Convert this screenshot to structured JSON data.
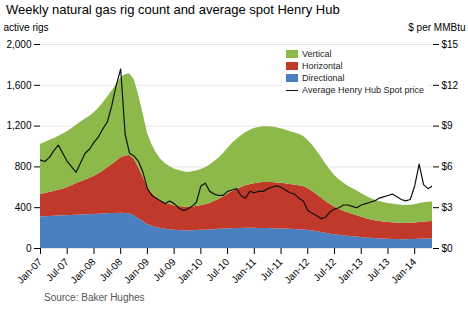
{
  "chart_data": {
    "type": "area",
    "title": "Weekly natural gas rig count and average spot Henry Hub",
    "source": "Source: Baker Hughes",
    "ylabel": "active rigs",
    "y2label": "$ per MMBtu",
    "stacked": true,
    "grid": true,
    "legend": "upper right",
    "categories": [
      "Jan-07",
      null,
      null,
      null,
      null,
      null,
      "Jul-07",
      null,
      null,
      null,
      null,
      null,
      "Jan-08",
      null,
      null,
      null,
      null,
      null,
      "Jul-08",
      null,
      null,
      null,
      null,
      null,
      "Jan-09",
      null,
      null,
      null,
      null,
      null,
      "Jul-09",
      null,
      null,
      null,
      null,
      null,
      "Jan-10",
      null,
      null,
      null,
      null,
      null,
      "Jul-10",
      null,
      null,
      null,
      null,
      null,
      "Jan-11",
      null,
      null,
      null,
      null,
      null,
      "Jul-11",
      null,
      null,
      null,
      null,
      null,
      "Jan-12",
      null,
      null,
      null,
      null,
      null,
      "Jul-12",
      null,
      null,
      null,
      null,
      null,
      "Jan-13",
      null,
      null,
      null,
      null,
      null,
      "Jul-13",
      null,
      null,
      null,
      null,
      null,
      "Jan-14",
      null,
      null,
      null,
      null
    ],
    "ylim": [
      0,
      2000
    ],
    "yticks": [
      0,
      400,
      800,
      {
        "value": 1200,
        "label": "1,200"
      },
      {
        "value": 1600,
        "label": "1,600"
      },
      {
        "value": 2000,
        "label": "2,000"
      }
    ],
    "y2lim": [
      0,
      15
    ],
    "y2ticks": [
      {
        "value": 0,
        "label": "$0"
      },
      {
        "value": 3,
        "label": "$3"
      },
      {
        "value": 6,
        "label": "$6"
      },
      {
        "value": 9,
        "label": "$9"
      },
      {
        "value": 12,
        "label": "$12"
      },
      {
        "value": 15,
        "label": "$15"
      }
    ],
    "series": [
      {
        "name": "Directional",
        "color": "#4a7fc0",
        "values": [
          310,
          312,
          314,
          315,
          318,
          320,
          322,
          324,
          326,
          328,
          330,
          332,
          334,
          336,
          338,
          340,
          342,
          344,
          346,
          344,
          340,
          320,
          295,
          265,
          235,
          220,
          205,
          195,
          188,
          183,
          178,
          176,
          174,
          172,
          174,
          176,
          178,
          180,
          182,
          185,
          188,
          190,
          192,
          194,
          195,
          196,
          198,
          198,
          198,
          197,
          196,
          195,
          194,
          193,
          192,
          190,
          188,
          186,
          184,
          182,
          178,
          172,
          166,
          158,
          150,
          143,
          136,
          130,
          125,
          120,
          116,
          112,
          108,
          104,
          100,
          97,
          94,
          92,
          90,
          89,
          88,
          87,
          87,
          88,
          89,
          90,
          92,
          93,
          94
        ]
      },
      {
        "name": "Horizontal",
        "color": "#c0392b",
        "values": [
          220,
          228,
          236,
          244,
          252,
          262,
          274,
          290,
          308,
          325,
          340,
          355,
          372,
          395,
          420,
          448,
          478,
          510,
          542,
          562,
          572,
          558,
          505,
          438,
          368,
          325,
          295,
          272,
          258,
          248,
          240,
          236,
          232,
          230,
          232,
          235,
          240,
          248,
          260,
          275,
          292,
          312,
          338,
          362,
          382,
          400,
          416,
          428,
          438,
          444,
          450,
          452,
          452,
          450,
          447,
          444,
          440,
          436,
          432,
          426,
          410,
          390,
          366,
          340,
          314,
          290,
          270,
          254,
          240,
          230,
          220,
          210,
          200,
          190,
          182,
          176,
          172,
          168,
          165,
          163,
          161,
          159,
          158,
          159,
          161,
          164,
          168,
          170,
          171
        ]
      },
      {
        "name": "Vertical",
        "color": "#8db84a",
        "values": [
          490,
          500,
          510,
          518,
          528,
          538,
          548,
          560,
          572,
          584,
          596,
          608,
          622,
          642,
          666,
          692,
          720,
          750,
          780,
          798,
          802,
          782,
          712,
          625,
          528,
          475,
          438,
          408,
          388,
          374,
          362,
          355,
          348,
          343,
          346,
          350,
          356,
          364,
          375,
          390,
          406,
          425,
          448,
          470,
          490,
          508,
          522,
          532,
          540,
          545,
          548,
          547,
          544,
          540,
          535,
          528,
          520,
          512,
          504,
          493,
          474,
          452,
          426,
          398,
          368,
          340,
          313,
          293,
          276,
          262,
          252,
          244,
          232,
          220,
          210,
          202,
          196,
          191,
          187,
          184,
          181,
          178,
          177,
          178,
          180,
          184,
          188,
          190,
          190
        ]
      },
      {
        "name": "Average Henry Hub Spot price",
        "type": "line",
        "axis": "y2",
        "color": "#111111",
        "values": [
          6.5,
          6.4,
          6.7,
          7.2,
          7.6,
          7.0,
          6.4,
          6.0,
          5.6,
          6.3,
          7.0,
          7.3,
          7.8,
          8.2,
          8.8,
          9.3,
          10.5,
          12.0,
          13.2,
          8.4,
          7.0,
          6.8,
          6.4,
          5.6,
          4.4,
          3.9,
          3.7,
          3.5,
          3.3,
          3.5,
          3.3,
          3.0,
          2.8,
          2.9,
          3.1,
          3.4,
          4.6,
          4.8,
          4.2,
          4.0,
          3.9,
          3.9,
          4.2,
          4.3,
          4.4,
          3.9,
          3.7,
          4.2,
          4.1,
          4.2,
          4.2,
          4.4,
          4.5,
          4.6,
          4.5,
          4.3,
          4.1,
          4.0,
          3.7,
          3.5,
          2.8,
          2.6,
          2.4,
          2.2,
          2.3,
          2.7,
          2.9,
          3.0,
          3.2,
          3.2,
          3.1,
          3.0,
          3.2,
          3.3,
          3.4,
          3.5,
          3.7,
          3.8,
          3.9,
          4.0,
          3.8,
          3.6,
          3.5,
          3.6,
          4.6,
          6.2,
          4.7,
          4.4,
          4.6
        ]
      }
    ]
  }
}
